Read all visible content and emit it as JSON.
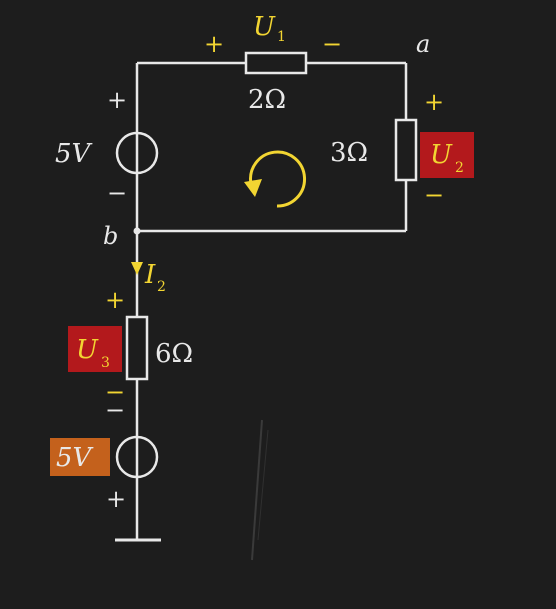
{
  "labels": {
    "u1_main": "U",
    "u1_sub": "1",
    "u1_plus": "+",
    "u1_minus": "−",
    "node_a": "a",
    "node_b": "b",
    "r1": "2Ω",
    "r2": "3Ω",
    "r3": "6Ω",
    "src_top": "5V",
    "src_top_plus": "+",
    "src_top_minus": "−",
    "src_bottom": "5V",
    "src_bottom_minus": "−",
    "src_bottom_plus": "+",
    "u2_main": "U",
    "u2_sub": "2",
    "u2_plus": "+",
    "u2_minus": "−",
    "i2_main": "I",
    "i2_sub": "2",
    "u3_main": "U",
    "u3_sub": "3",
    "u3_plus": "+",
    "u3_minus": "−"
  },
  "colors": {
    "board": "#1d1d1d",
    "wire": "#e8e8e8",
    "yellow": "#f2d532",
    "highlight_red": "#b3191c",
    "highlight_orange": "#c4611c"
  }
}
